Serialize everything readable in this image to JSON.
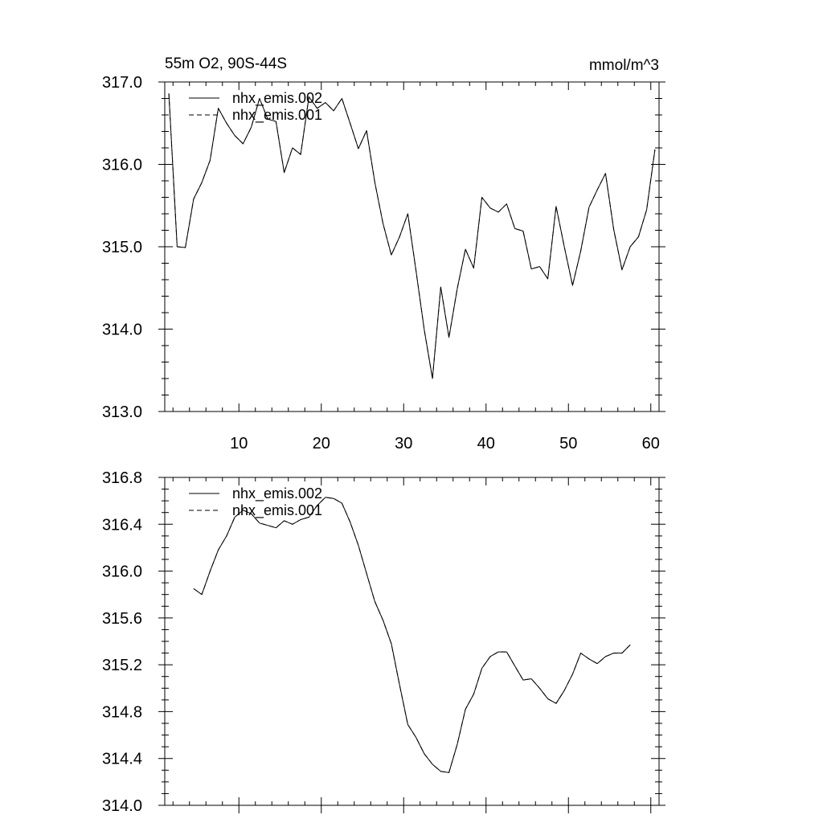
{
  "chart_data": [
    {
      "type": "line",
      "title_left": "55m O2, 90S-44S",
      "title_right": "mmol/m^3",
      "xlim": [
        1,
        61
      ],
      "ylim": [
        313.0,
        317.0
      ],
      "x_ticks": [
        10,
        20,
        30,
        40,
        50,
        60
      ],
      "x_tick_labels": [
        "10",
        "20",
        "30",
        "40",
        "50",
        "60"
      ],
      "y_ticks": [
        313.0,
        314.0,
        315.0,
        316.0,
        317.0
      ],
      "y_tick_labels": [
        "313.0",
        "314.0",
        "315.0",
        "316.0",
        "317.0"
      ],
      "legend": {
        "position": "top-left",
        "entries": [
          {
            "label": "nhx_emis.002",
            "style": "solid"
          },
          {
            "label": "nhx_emis.001",
            "style": "dashed"
          }
        ]
      },
      "series": [
        {
          "name": "nhx_emis.002",
          "style": "solid",
          "x": [
            1.5,
            2.5,
            3.5,
            4.5,
            5.5,
            6.5,
            7.5,
            8.5,
            9.5,
            10.5,
            11.5,
            12.5,
            13.5,
            14.5,
            15.5,
            16.5,
            17.5,
            18.5,
            19.5,
            20.5,
            21.5,
            22.5,
            23.5,
            24.5,
            25.5,
            26.5,
            27.5,
            28.5,
            29.5,
            30.5,
            31.5,
            32.5,
            33.5,
            34.5,
            35.5,
            36.5,
            37.5,
            38.5,
            39.5,
            40.5,
            41.5,
            42.5,
            43.5,
            44.5,
            45.5,
            46.5,
            47.5,
            48.5,
            49.5,
            50.5,
            51.5,
            52.5,
            53.5,
            54.5,
            55.5,
            56.5,
            57.5,
            58.5,
            59.5,
            60.5
          ],
          "values": [
            316.86,
            315.0,
            314.99,
            315.58,
            315.78,
            316.05,
            316.68,
            316.5,
            316.35,
            316.25,
            316.45,
            316.8,
            316.55,
            316.52,
            315.9,
            316.2,
            316.12,
            316.82,
            316.68,
            316.75,
            316.65,
            316.8,
            316.5,
            316.19,
            316.41,
            315.78,
            315.28,
            314.9,
            315.12,
            315.4,
            314.71,
            313.99,
            313.4,
            314.51,
            313.9,
            314.49,
            314.97,
            314.74,
            315.6,
            315.47,
            315.42,
            315.52,
            315.22,
            315.19,
            314.73,
            314.76,
            314.61,
            315.49,
            315.0,
            314.53,
            314.95,
            315.48,
            315.69,
            315.89,
            315.21,
            314.72,
            315.0,
            315.12,
            315.45,
            316.18
          ]
        },
        {
          "name": "nhx_emis.001",
          "style": "dashed",
          "x": [
            1.5,
            2.5,
            3.5,
            4.5,
            5.5,
            6.5,
            7.5,
            8.5,
            9.5,
            10.5,
            11.5,
            12.5,
            13.5,
            14.5,
            15.5,
            16.5,
            17.5,
            18.5,
            19.5,
            20.5,
            21.5,
            22.5,
            23.5,
            24.5,
            25.5,
            26.5,
            27.5,
            28.5,
            29.5,
            30.5,
            31.5,
            32.5,
            33.5,
            34.5,
            35.5,
            36.5,
            37.5,
            38.5,
            39.5,
            40.5,
            41.5,
            42.5,
            43.5,
            44.5,
            45.5,
            46.5,
            47.5,
            48.5,
            49.5,
            50.5,
            51.5,
            52.5,
            53.5,
            54.5,
            55.5,
            56.5,
            57.5,
            58.5,
            59.5,
            60.5
          ],
          "values": [
            316.86,
            315.0,
            314.99,
            315.58,
            315.78,
            316.05,
            316.68,
            316.5,
            316.35,
            316.25,
            316.45,
            316.8,
            316.55,
            316.52,
            315.9,
            316.2,
            316.12,
            316.82,
            316.68,
            316.75,
            316.65,
            316.8,
            316.5,
            316.19,
            316.41,
            315.78,
            315.28,
            314.9,
            315.12,
            315.4,
            314.71,
            313.99,
            313.4,
            314.51,
            313.9,
            314.49,
            314.97,
            314.74,
            315.6,
            315.47,
            315.42,
            315.52,
            315.22,
            315.19,
            314.73,
            314.76,
            314.61,
            315.49,
            315.0,
            314.53,
            314.95,
            315.48,
            315.69,
            315.89,
            315.21,
            314.72,
            315.0,
            315.12,
            315.45,
            316.18
          ]
        }
      ]
    },
    {
      "type": "line",
      "xlim": [
        1,
        61
      ],
      "ylim": [
        314.0,
        316.8
      ],
      "x_ticks": [
        10,
        20,
        30,
        40,
        50,
        60
      ],
      "y_ticks": [
        314.0,
        314.4,
        314.8,
        315.2,
        315.6,
        316.0,
        316.4,
        316.8
      ],
      "y_tick_labels": [
        "314.0",
        "314.4",
        "314.8",
        "315.2",
        "315.6",
        "316.0",
        "316.4",
        "316.8"
      ],
      "legend": {
        "position": "top-left",
        "entries": [
          {
            "label": "nhx_emis.002",
            "style": "solid"
          },
          {
            "label": "nhx_emis.001",
            "style": "dashed"
          }
        ]
      },
      "series": [
        {
          "name": "nhx_emis.002",
          "style": "solid",
          "x": [
            4.5,
            5.5,
            6.5,
            7.5,
            8.5,
            9.5,
            10.5,
            11.5,
            12.5,
            13.5,
            14.5,
            15.5,
            16.5,
            17.5,
            18.5,
            19.5,
            20.5,
            21.5,
            22.5,
            23.5,
            24.5,
            25.5,
            26.5,
            27.5,
            28.5,
            29.5,
            30.5,
            31.5,
            32.5,
            33.5,
            34.5,
            35.5,
            36.5,
            37.5,
            38.5,
            39.5,
            40.5,
            41.5,
            42.5,
            43.5,
            44.5,
            45.5,
            46.5,
            47.5,
            48.5,
            49.5,
            50.5,
            51.5,
            52.5,
            53.5,
            54.5,
            55.5,
            56.5,
            57.5
          ],
          "values": [
            315.85,
            315.8,
            316.0,
            316.18,
            316.3,
            316.46,
            316.52,
            316.49,
            316.41,
            316.39,
            316.37,
            316.43,
            316.4,
            316.44,
            316.46,
            316.56,
            316.63,
            316.62,
            316.58,
            316.42,
            316.22,
            315.98,
            315.74,
            315.58,
            315.38,
            315.03,
            314.69,
            314.58,
            314.44,
            314.35,
            314.29,
            314.28,
            314.52,
            314.82,
            314.95,
            315.17,
            315.27,
            315.31,
            315.31,
            315.19,
            315.07,
            315.08,
            315.0,
            314.91,
            314.87,
            314.98,
            315.12,
            315.3,
            315.25,
            315.21,
            315.27,
            315.3,
            315.3,
            315.37
          ]
        },
        {
          "name": "nhx_emis.001",
          "style": "dashed",
          "x": [
            4.5,
            5.5,
            6.5,
            7.5,
            8.5,
            9.5,
            10.5,
            11.5,
            12.5,
            13.5,
            14.5,
            15.5,
            16.5,
            17.5,
            18.5,
            19.5,
            20.5,
            21.5,
            22.5,
            23.5,
            24.5,
            25.5,
            26.5,
            27.5,
            28.5,
            29.5,
            30.5,
            31.5,
            32.5,
            33.5,
            34.5,
            35.5,
            36.5,
            37.5,
            38.5,
            39.5,
            40.5,
            41.5,
            42.5,
            43.5,
            44.5,
            45.5,
            46.5,
            47.5,
            48.5,
            49.5,
            50.5,
            51.5,
            52.5,
            53.5,
            54.5,
            55.5,
            56.5,
            57.5
          ],
          "values": [
            315.85,
            315.8,
            316.0,
            316.18,
            316.3,
            316.46,
            316.52,
            316.49,
            316.41,
            316.39,
            316.37,
            316.43,
            316.4,
            316.44,
            316.46,
            316.56,
            316.63,
            316.62,
            316.58,
            316.42,
            316.22,
            315.98,
            315.74,
            315.58,
            315.38,
            315.03,
            314.69,
            314.58,
            314.44,
            314.35,
            314.29,
            314.28,
            314.52,
            314.82,
            314.95,
            315.17,
            315.27,
            315.31,
            315.31,
            315.19,
            315.07,
            315.08,
            315.0,
            314.91,
            314.87,
            314.98,
            315.12,
            315.3,
            315.25,
            315.21,
            315.27,
            315.3,
            315.3,
            315.37
          ]
        }
      ]
    }
  ]
}
